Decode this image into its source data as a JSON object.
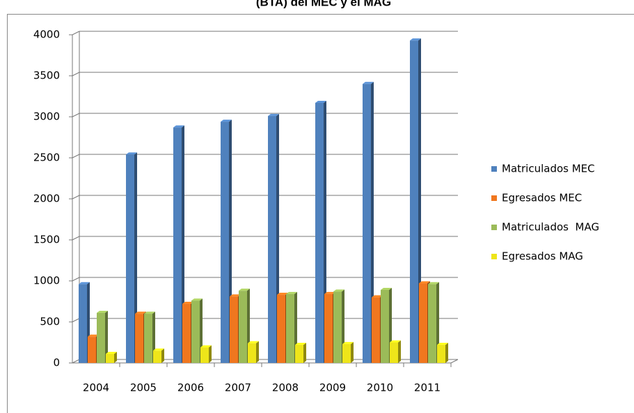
{
  "chart_data": {
    "type": "bar3d",
    "title": "(BTA) del MEC y el MAG",
    "categories": [
      "2004",
      "2005",
      "2006",
      "2007",
      "2008",
      "2009",
      "2010",
      "2011"
    ],
    "series": [
      {
        "name": "Matriculados MEC",
        "color": "#4f81bd",
        "values": [
          960,
          2540,
          2870,
          2940,
          3010,
          3170,
          3400,
          3930
        ]
      },
      {
        "name": "Egresados MEC",
        "color": "#f0771f",
        "values": [
          320,
          600,
          720,
          810,
          830,
          840,
          800,
          970
        ]
      },
      {
        "name": "Matriculados  MAG",
        "color": "#9bbb59",
        "values": [
          610,
          600,
          760,
          880,
          840,
          870,
          890,
          960
        ]
      },
      {
        "name": "Egresados MAG",
        "color": "#eee51a",
        "values": [
          110,
          150,
          190,
          240,
          220,
          230,
          250,
          220
        ]
      }
    ],
    "ylim": [
      0,
      4000
    ],
    "yticks": [
      0,
      500,
      1000,
      1500,
      2000,
      2500,
      3000,
      3500,
      4000
    ],
    "grid": true,
    "legend": "right"
  }
}
